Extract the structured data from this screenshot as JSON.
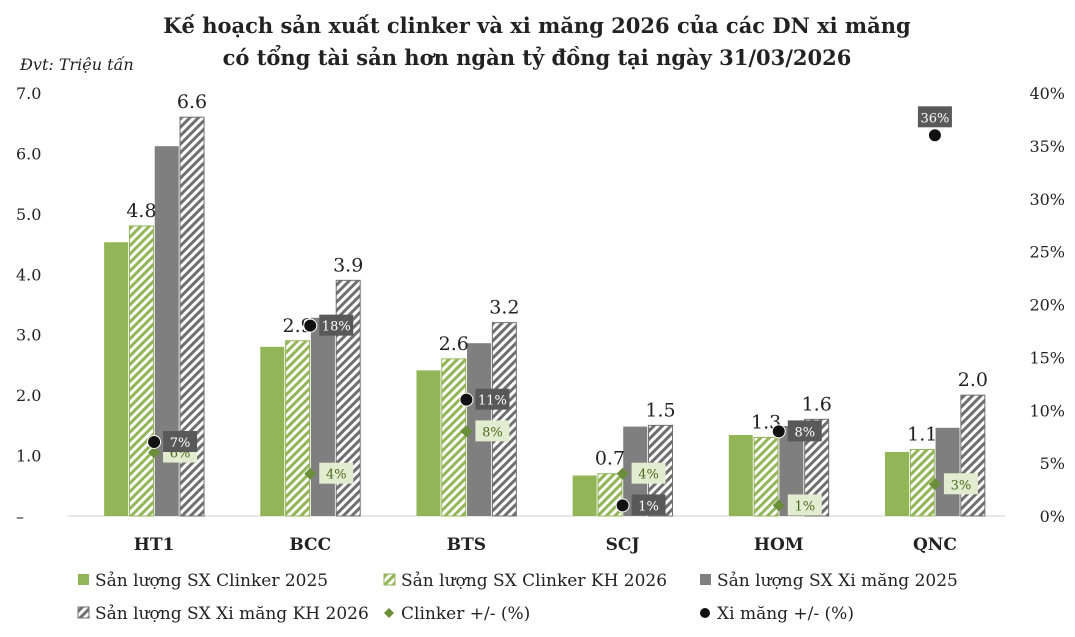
{
  "chart_data": {
    "type": "bar",
    "title_line1": "Kế hoạch sản xuất clinker và xi măng 2026 của các DN xi măng",
    "title_line2": "có tổng tài sản hơn ngàn tỷ đồng tại ngày 31/03/2026",
    "unit_label": "Đvt: Triệu tấn",
    "categories": [
      "HT1",
      "BCC",
      "BTS",
      "SCJ",
      "HOM",
      "QNC"
    ],
    "ylim": [
      0,
      7
    ],
    "y_ticks": [
      "–",
      "1.0",
      "2.0",
      "3.0",
      "4.0",
      "5.0",
      "6.0",
      "7.0"
    ],
    "y2lim": [
      0,
      40
    ],
    "y2_ticks": [
      "0%",
      "5%",
      "10%",
      "15%",
      "20%",
      "25%",
      "30%",
      "35%",
      "40%"
    ],
    "series": [
      {
        "name": "Sản lượng SX Clinker 2025",
        "values": [
          4.53,
          2.8,
          2.41,
          0.67,
          1.34,
          1.06
        ],
        "color": "#92b557",
        "pattern": "solid"
      },
      {
        "name": "Sản lượng SX Clinker KH 2026",
        "values": [
          4.8,
          2.9,
          2.6,
          0.7,
          1.3,
          1.1
        ],
        "labels": [
          "4.8",
          "2.9",
          "2.6",
          "0.7",
          "1.3",
          "1.1"
        ],
        "color": "#92b557",
        "pattern": "hatch"
      },
      {
        "name": "Sản lượng SX Xi măng 2025",
        "values": [
          6.12,
          3.28,
          2.86,
          1.48,
          1.49,
          1.46
        ],
        "color": "#7f7f7f",
        "pattern": "solid"
      },
      {
        "name": "Sản lượng SX Xi măng KH 2026",
        "values": [
          6.6,
          3.9,
          3.2,
          1.5,
          1.6,
          2.0
        ],
        "labels": [
          "6.6",
          "3.9",
          "3.2",
          "1.5",
          "1.6",
          "2.0"
        ],
        "color": "#7f7f7f",
        "pattern": "hatch"
      }
    ],
    "line_series": [
      {
        "name": "Clinker +/- (%)",
        "marker": "diamond",
        "color": "#6b8e3a",
        "values": [
          6,
          4,
          8,
          4,
          1,
          3
        ],
        "labels": [
          "6%",
          "4%",
          "8%",
          "4%",
          "1%",
          "3%"
        ]
      },
      {
        "name": "Xi măng +/- (%)",
        "marker": "circle",
        "color": "#111111",
        "values": [
          7,
          18,
          11,
          1,
          8,
          36
        ],
        "labels": [
          "7%",
          "18%",
          "11%",
          "1%",
          "8%",
          "36%"
        ]
      }
    ],
    "legend_position": "bottom",
    "grid": false
  }
}
